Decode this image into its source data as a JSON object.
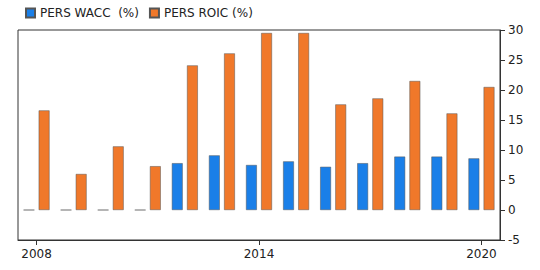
{
  "chart_data": {
    "type": "bar",
    "categories": [
      "2008",
      null,
      null,
      null,
      null,
      null,
      "2014",
      null,
      null,
      null,
      null,
      null,
      "2020"
    ],
    "series": [
      {
        "name": "PERS WACC  (%)",
        "color": "#1a7fe8",
        "values": [
          0,
          0,
          0,
          0,
          7.8,
          9.1,
          7.5,
          8.1,
          7.2,
          7.8,
          8.9,
          8.9,
          8.6
        ]
      },
      {
        "name": "PERS ROIC (%)",
        "color": "#f0782a",
        "values": [
          16.6,
          6.0,
          10.6,
          7.3,
          24.1,
          26.1,
          29.5,
          29.5,
          17.6,
          18.6,
          21.5,
          16.1,
          20.5
        ]
      }
    ],
    "ylim": [
      -5,
      30
    ],
    "yticks": [
      -5,
      0,
      5,
      10,
      15,
      20,
      25,
      30
    ],
    "grid": false,
    "legend": "top-left"
  }
}
